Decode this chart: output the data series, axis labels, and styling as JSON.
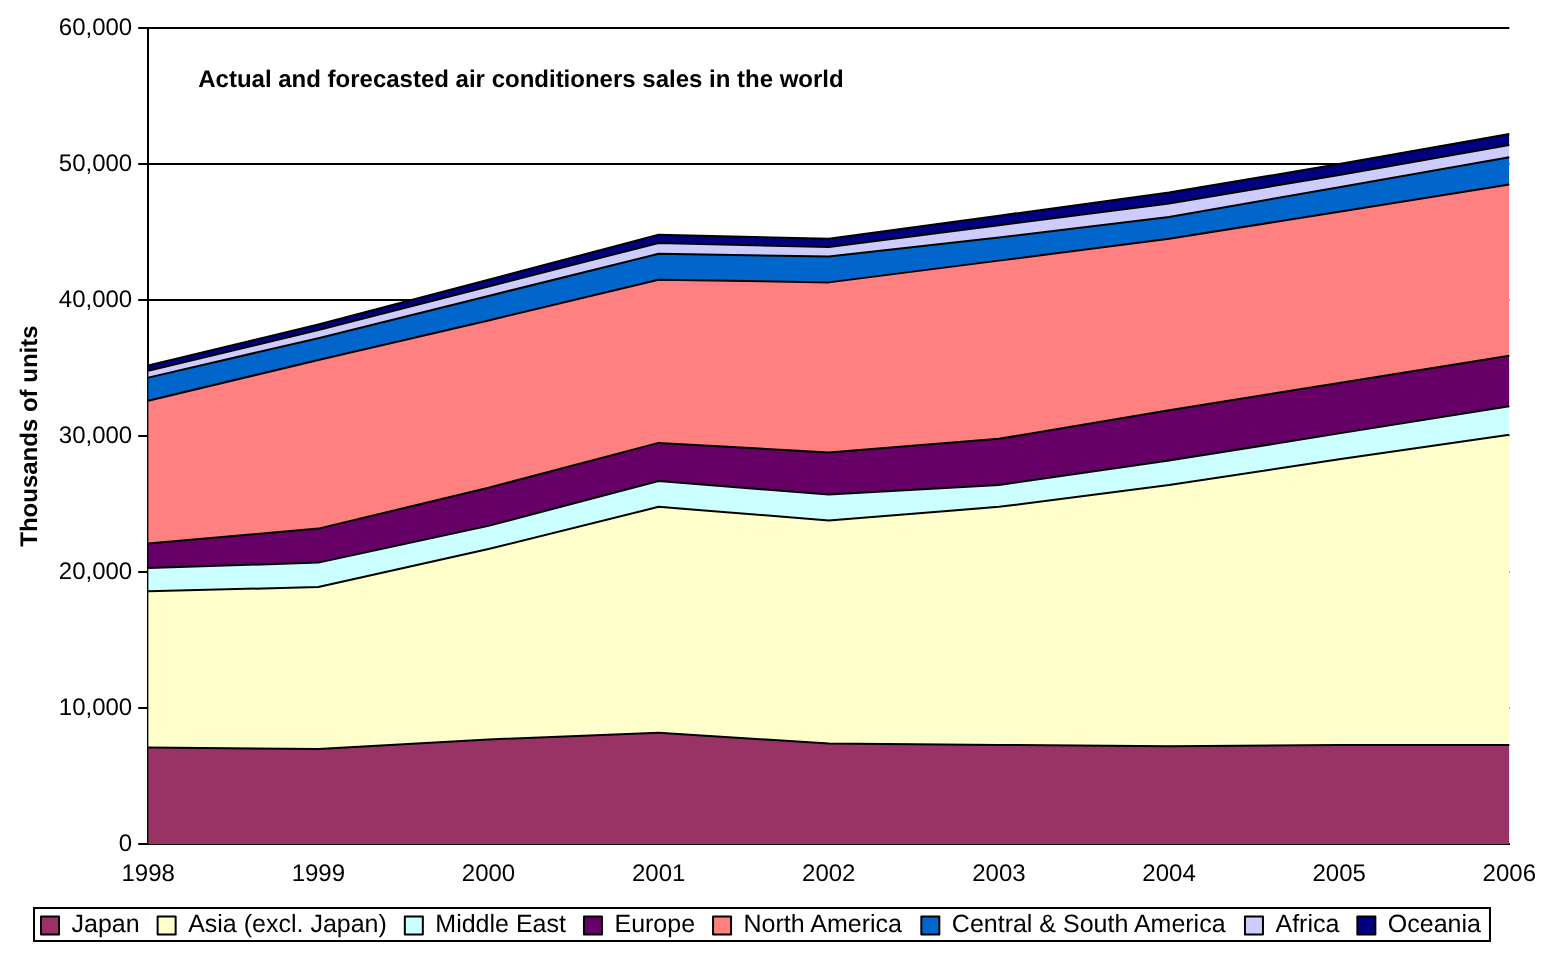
{
  "chart_data": {
    "type": "area",
    "stacked": true,
    "title": "Actual and forecasted air conditioners sales in the world",
    "ylabel": "Thousands of units",
    "categories": [
      "1998",
      "1999",
      "2000",
      "2001",
      "2002",
      "2003",
      "2004",
      "2005",
      "2006"
    ],
    "series": [
      {
        "name": "Japan",
        "color": "#993366",
        "values": [
          7100,
          7000,
          7700,
          8200,
          7400,
          7300,
          7200,
          7300,
          7300
        ]
      },
      {
        "name": "Asia (excl. Japan)",
        "color": "#ffffcc",
        "values": [
          11500,
          11900,
          14000,
          16600,
          16400,
          17500,
          19200,
          21000,
          22800
        ]
      },
      {
        "name": "Middle East",
        "color": "#ccffff",
        "values": [
          1700,
          1800,
          1700,
          1900,
          1900,
          1600,
          1800,
          1900,
          2100
        ]
      },
      {
        "name": "Europe",
        "color": "#660066",
        "values": [
          1800,
          2500,
          2800,
          2800,
          3100,
          3400,
          3700,
          3700,
          3700
        ]
      },
      {
        "name": "North America",
        "color": "#ff8080",
        "values": [
          10500,
          12400,
          12300,
          12000,
          12500,
          13100,
          12600,
          12600,
          12600
        ]
      },
      {
        "name": "Central & South America",
        "color": "#0066cc",
        "values": [
          1700,
          1600,
          1800,
          1900,
          1900,
          1700,
          1600,
          1800,
          2000
        ]
      },
      {
        "name": "Africa",
        "color": "#ccccff",
        "values": [
          500,
          600,
          700,
          800,
          700,
          900,
          1000,
          900,
          900
        ]
      },
      {
        "name": "Oceania",
        "color": "#000080",
        "values": [
          400,
          400,
          500,
          600,
          600,
          700,
          800,
          800,
          800
        ]
      }
    ],
    "ylim": [
      0,
      60000
    ],
    "yticks": [
      {
        "value": 0,
        "label": "0"
      },
      {
        "value": 10000,
        "label": "10,000"
      },
      {
        "value": 20000,
        "label": "20,000"
      },
      {
        "value": 30000,
        "label": "30,000"
      },
      {
        "value": 40000,
        "label": "40,000"
      },
      {
        "value": 50000,
        "label": "50,000"
      },
      {
        "value": 60000,
        "label": "60,000"
      }
    ],
    "grid": "y",
    "legend": "bottom"
  }
}
